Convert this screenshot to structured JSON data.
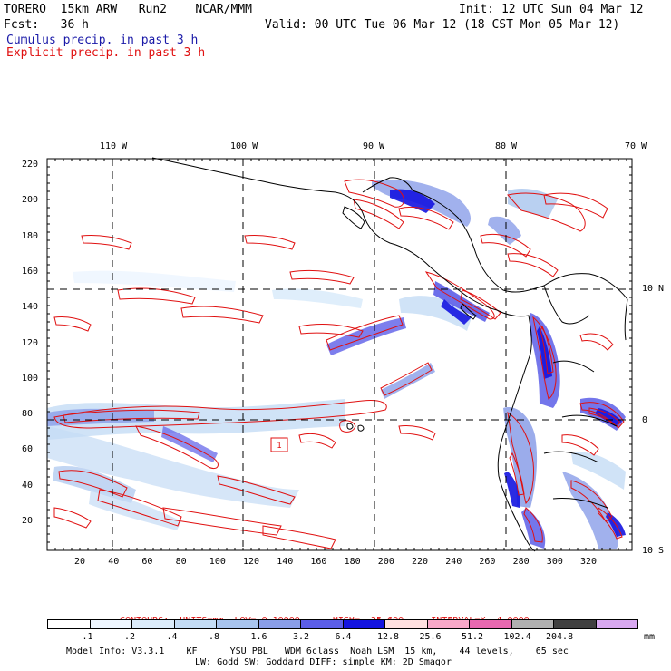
{
  "header": {
    "model_line": "TORERO  15km ARW   Run2    NCAR/MMM",
    "init": "Init: 12 UTC Sun 04 Mar 12",
    "fcst": "Fcst:   36 h",
    "valid": "Valid: 00 UTC Tue 06 Mar 12 (18 CST Mon 05 Mar 12)",
    "legend_cumulus": "Cumulus precip. in past 3 h",
    "legend_explicit": "Explicit precip. in past 3 h"
  },
  "colors": {
    "cumulus_text": "#1a1aa8",
    "explicit_text": "#e01010",
    "contour": "#e01010",
    "coast": "#000000",
    "grid": "#000000"
  },
  "map": {
    "lon_labels": [
      "110 W",
      "100 W",
      "90 W",
      "80 W",
      "70 W"
    ],
    "lat_labels": [
      "10 N",
      "0",
      "10 S"
    ],
    "y_ticks": [
      "220",
      "200",
      "180",
      "160",
      "140",
      "120",
      "100",
      "80",
      "60",
      "40",
      "20"
    ],
    "x_ticks": [
      "20",
      "40",
      "60",
      "80",
      "100",
      "120",
      "140",
      "160",
      "180",
      "200",
      "220",
      "240",
      "260",
      "280",
      "300",
      "320"
    ],
    "marker_label": "1"
  },
  "contour_info": {
    "label": "CONTOURS:",
    "units": "UNITS=mm",
    "low": "LOW= 0.10000",
    "high": "HIGH=  25.600",
    "interval": "INTERVAL=X  4.0000"
  },
  "color_scale": {
    "unit": "mm",
    "bins": [
      {
        "label": ".1",
        "color": "#ffffff"
      },
      {
        "label": ".2",
        "color": "#eef6ff"
      },
      {
        "label": ".4",
        "color": "#dcecfb"
      },
      {
        "label": ".8",
        "color": "#c4dcf5"
      },
      {
        "label": "1.6",
        "color": "#a8c4ee"
      },
      {
        "label": "3.2",
        "color": "#8a9ee8"
      },
      {
        "label": "6.4",
        "color": "#5c5ee8"
      },
      {
        "label": "12.8",
        "color": "#1414e0"
      },
      {
        "label": "25.6",
        "color": "#ffe0e0"
      },
      {
        "label": "51.2",
        "color": "#f8a8c8"
      },
      {
        "label": "102.4",
        "color": "#e868b0"
      },
      {
        "label": "204.8",
        "color": "#b0b0b0"
      },
      {
        "label": "",
        "color": "#404040"
      },
      {
        "label": "",
        "color": "#d8a8f0"
      }
    ]
  },
  "footer": {
    "line1": "Model Info: V3.3.1    KF      YSU PBL   WDM 6class  Noah LSM  15 km,    44 levels,    65 sec",
    "line2": "LW: Godd SW: Goddard DIFF: simple KM: 2D Smagor"
  }
}
